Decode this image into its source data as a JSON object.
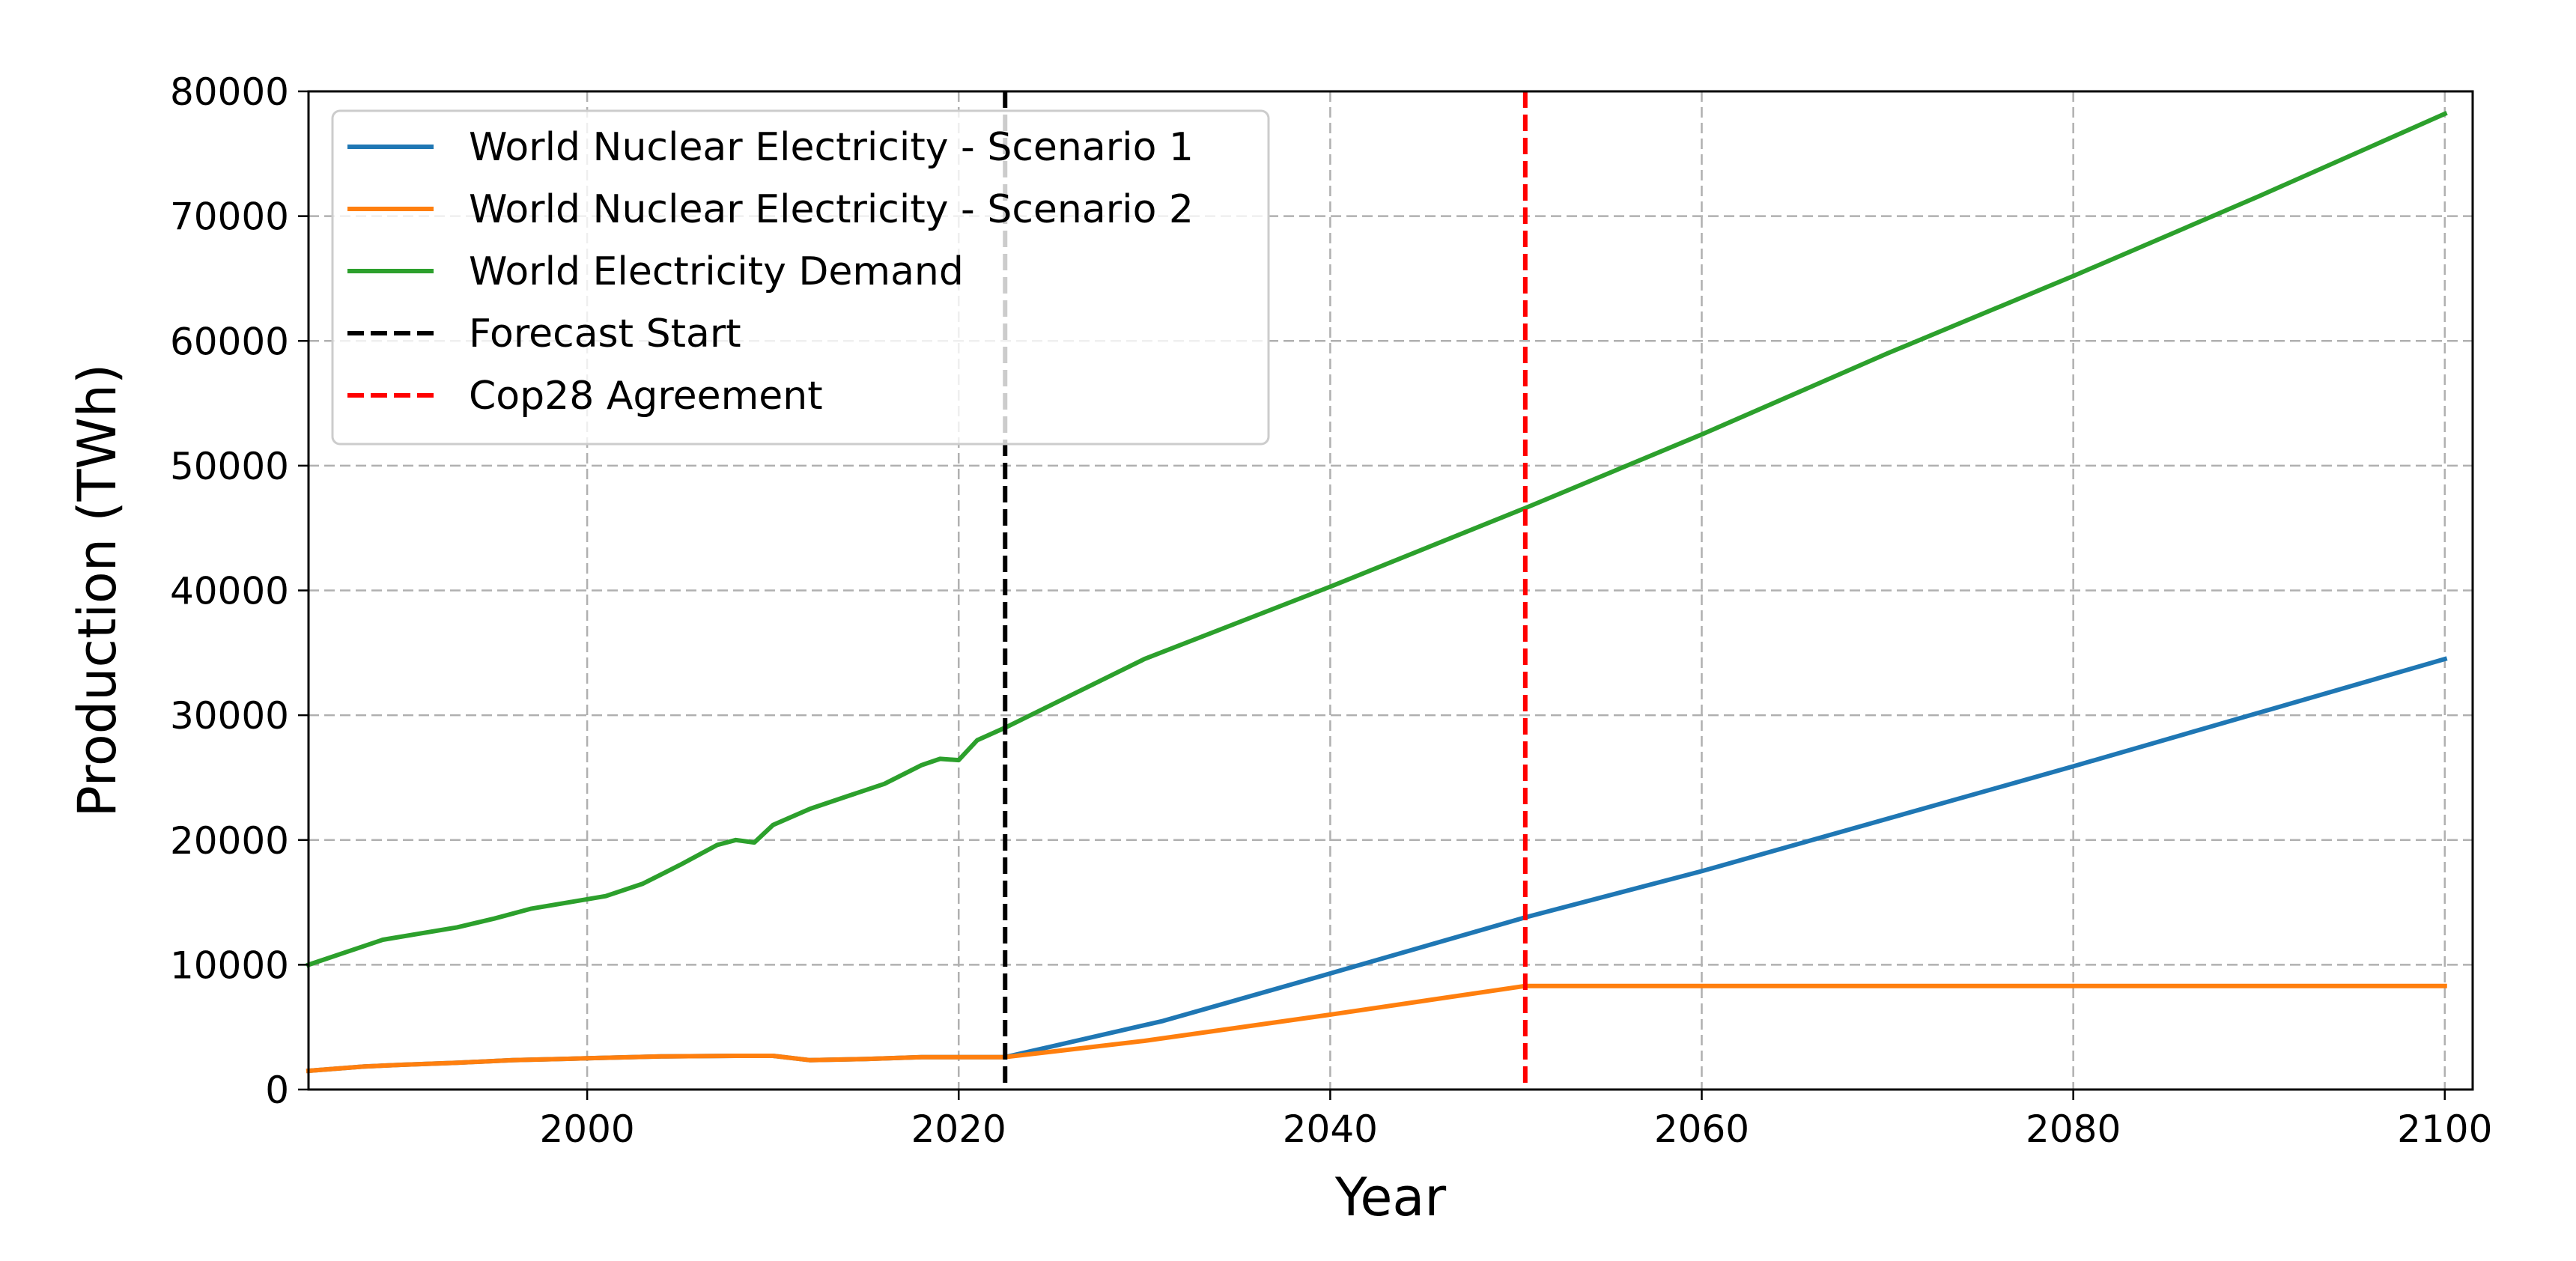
{
  "chart_data": {
    "type": "line",
    "title": "",
    "xlabel": "Year",
    "ylabel": "Production (TWh)",
    "xlim": [
      1985,
      2101.5
    ],
    "ylim": [
      0,
      80000
    ],
    "xticks": [
      2000,
      2020,
      2040,
      2060,
      2080,
      2100
    ],
    "yticks": [
      0,
      10000,
      20000,
      30000,
      40000,
      50000,
      60000,
      70000,
      80000
    ],
    "grid": true,
    "grid_style": "dashed",
    "legend_position": "upper-left",
    "series": [
      {
        "name": "World Nuclear Electricity - Scenario 1",
        "color": "#1f77b4",
        "style": "solid",
        "x": [
          1985,
          1988,
          1990,
          1993,
          1996,
          2000,
          2004,
          2008,
          2010,
          2012,
          2015,
          2018,
          2020,
          2022.5,
          2031,
          2040,
          2050.5,
          2060,
          2070,
          2080,
          2090,
          2100
        ],
        "y": [
          1500,
          1850,
          1980,
          2150,
          2350,
          2500,
          2650,
          2700,
          2700,
          2350,
          2450,
          2600,
          2600,
          2600,
          5500,
          9300,
          13800,
          17500,
          21700,
          25900,
          30200,
          34500
        ]
      },
      {
        "name": "World Nuclear Electricity - Scenario 2",
        "color": "#ff7f0e",
        "style": "solid",
        "x": [
          1985,
          1988,
          1990,
          1993,
          1996,
          2000,
          2004,
          2008,
          2010,
          2012,
          2015,
          2018,
          2020,
          2022.5,
          2030,
          2040,
          2050.5,
          2060,
          2080,
          2100
        ],
        "y": [
          1500,
          1850,
          1980,
          2150,
          2350,
          2500,
          2650,
          2700,
          2700,
          2350,
          2450,
          2600,
          2600,
          2600,
          3900,
          6000,
          8300,
          8300,
          8300,
          8300
        ]
      },
      {
        "name": "World Electricity Demand",
        "color": "#2ca02c",
        "style": "solid",
        "x": [
          1985,
          1987,
          1989,
          1991,
          1993,
          1995,
          1997,
          1999,
          2001,
          2003,
          2005,
          2007,
          2008,
          2009,
          2010,
          2012,
          2014,
          2016,
          2018,
          2019,
          2020,
          2021,
          2022.5,
          2030,
          2040,
          2050.5,
          2060,
          2070,
          2080,
          2090,
          2100
        ],
        "y": [
          10000,
          11000,
          12000,
          12500,
          13000,
          13700,
          14500,
          15000,
          15500,
          16500,
          18000,
          19600,
          20000,
          19800,
          21200,
          22500,
          23500,
          24500,
          26000,
          26500,
          26400,
          28000,
          29000,
          34500,
          40300,
          46600,
          52500,
          59000,
          65200,
          71600,
          78200
        ]
      },
      {
        "name": "Forecast Start",
        "color": "#000000",
        "style": "dashed",
        "vertical_x": 2022.5
      },
      {
        "name": "Cop28 Agreement",
        "color": "#ff0000",
        "style": "dashed",
        "vertical_x": 2050.5
      }
    ]
  }
}
